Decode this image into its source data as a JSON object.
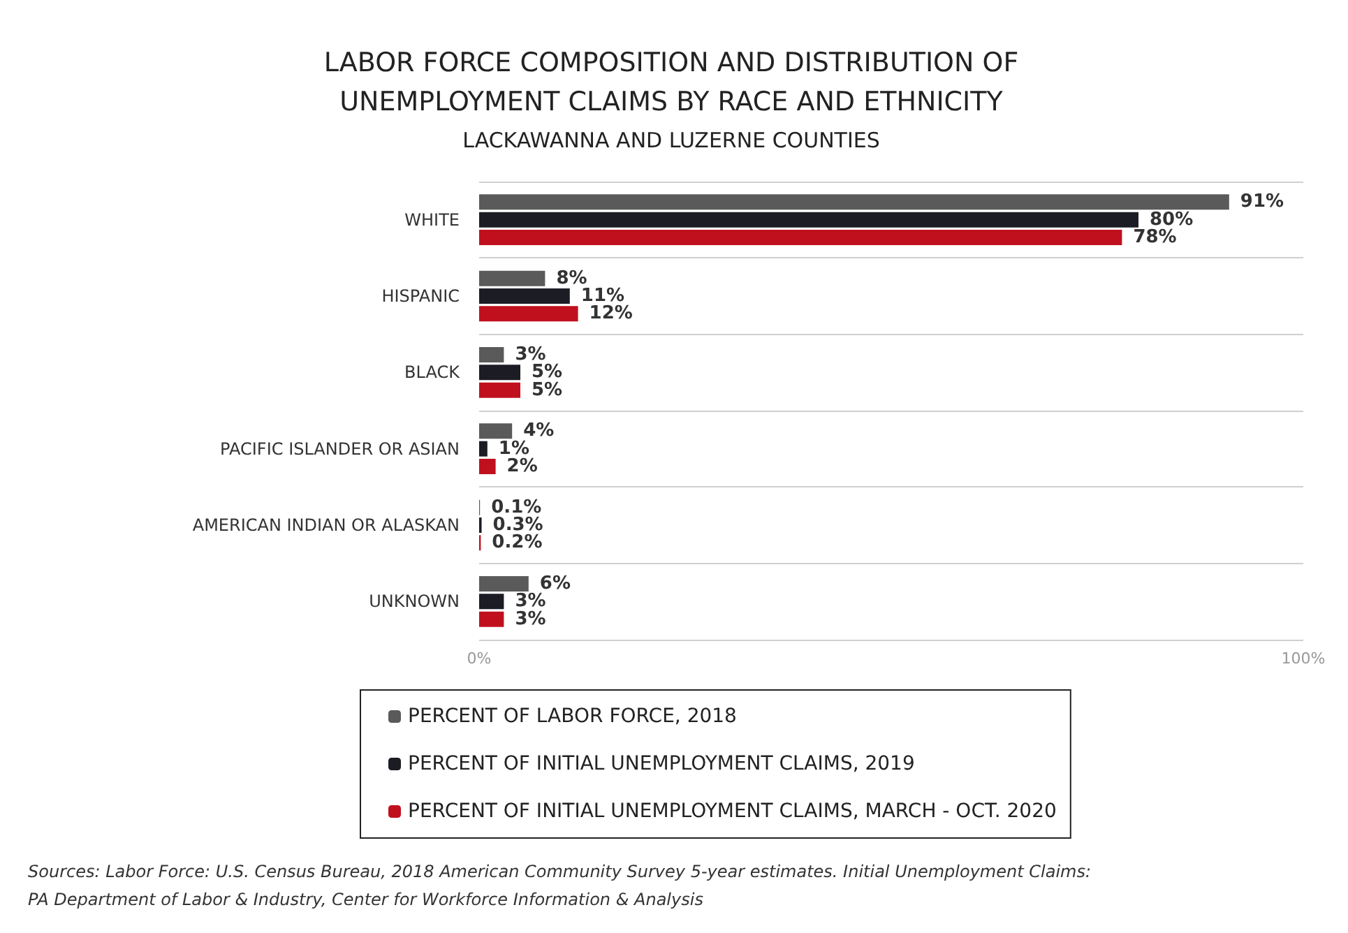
{
  "chart_data": {
    "type": "bar",
    "orientation": "horizontal",
    "title": "LABOR FORCE COMPOSITION AND DISTRIBUTION OF\nUNEMPLOYMENT CLAIMS BY RACE AND ETHNICITY",
    "subtitle": "LACKAWANNA AND LUZERNE COUNTIES",
    "categories": [
      "WHITE",
      "HISPANIC",
      "BLACK",
      "PACIFIC ISLANDER OR ASIAN",
      "AMERICAN INDIAN OR ALASKAN",
      "UNKNOWN"
    ],
    "series": [
      {
        "name": "PERCENT OF LABOR FORCE, 2018",
        "color": "#5a5a5a",
        "values": [
          91,
          8,
          3,
          4,
          0.1,
          6
        ],
        "value_labels": [
          "91%",
          "8%",
          "3%",
          "4%",
          "0.1%",
          "6%"
        ]
      },
      {
        "name": "PERCENT OF INITIAL UNEMPLOYMENT CLAIMS, 2019",
        "color": "#1c1c24",
        "values": [
          80,
          11,
          5,
          1,
          0.3,
          3
        ],
        "value_labels": [
          "80%",
          "11%",
          "5%",
          "1%",
          "0.3%",
          "3%"
        ]
      },
      {
        "name": "PERCENT OF INITIAL UNEMPLOYMENT CLAIMS, MARCH - OCT. 2020",
        "color": "#c0101e",
        "values": [
          78,
          12,
          5,
          2,
          0.2,
          3
        ],
        "value_labels": [
          "78%",
          "12%",
          "5%",
          "2%",
          "0.2%",
          "3%"
        ]
      }
    ],
    "xlim": [
      0,
      100
    ],
    "xticks": [
      {
        "value": 0,
        "label": "0%"
      },
      {
        "value": 100,
        "label": "100%"
      }
    ],
    "grid": "y",
    "legend": "bottom",
    "annotations": [
      "Sources: Labor Force: U.S. Census Bureau, 2018 American Community Survey 5-year estimates. Initial Unemployment Claims:\nPA Department of Labor & Industry, Center for Workforce Information & Analysis"
    ]
  }
}
